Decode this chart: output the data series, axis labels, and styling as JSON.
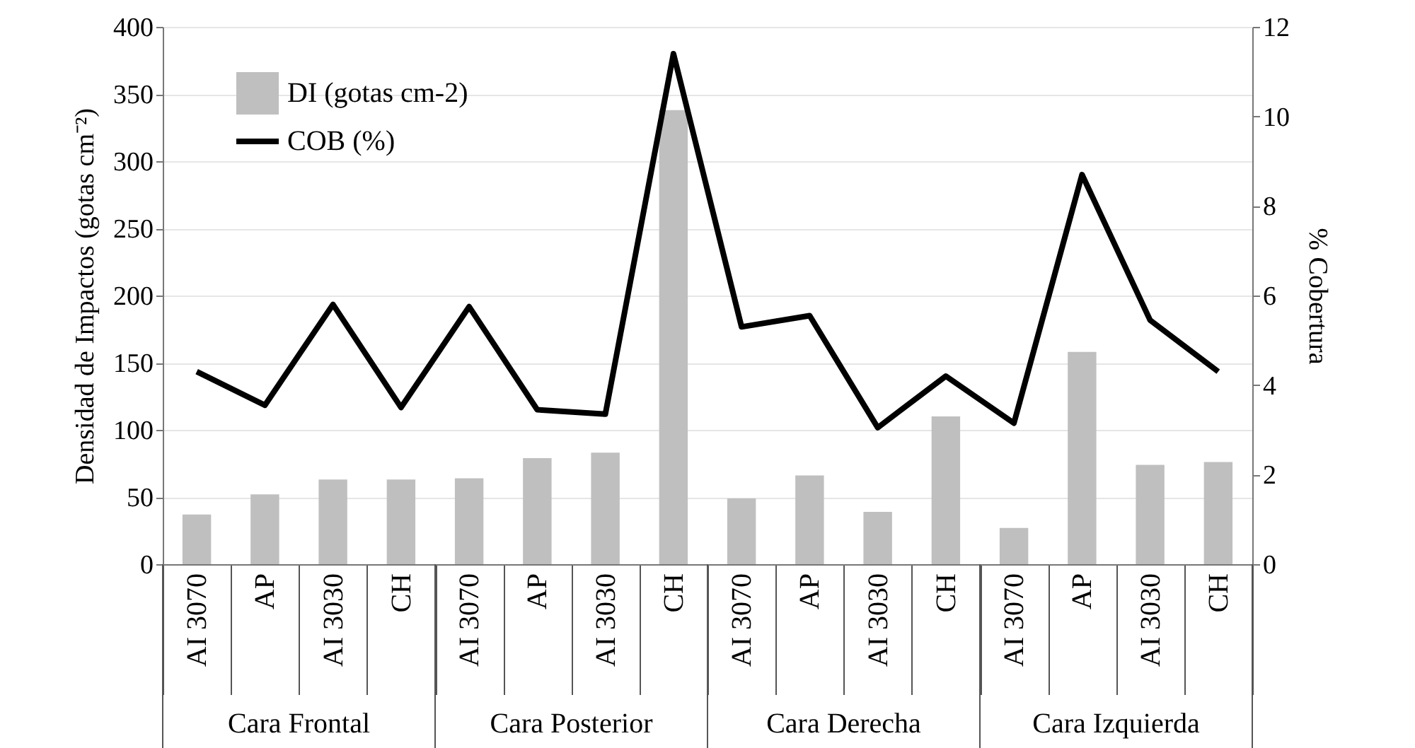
{
  "chart_data": {
    "type": "bar",
    "categories": [
      "AI 3070",
      "AP",
      "AI 3030",
      "CH",
      "AI 3070",
      "AP",
      "AI 3030",
      "CH",
      "AI 3070",
      "AP",
      "AI 3030",
      "CH",
      "AI 3070",
      "AP",
      "AI 3030",
      "CH"
    ],
    "series": [
      {
        "name": "DI (gotas cm-2)",
        "color": "#bfbfbf",
        "values": [
          37,
          52,
          63,
          63,
          64,
          79,
          83,
          338,
          49,
          66,
          39,
          110,
          27,
          158,
          74,
          76
        ]
      },
      {
        "name": "COB (%)",
        "type": "line",
        "axis": "y2",
        "color": "#000000",
        "values": [
          4.3,
          3.55,
          5.8,
          3.5,
          5.75,
          3.45,
          3.35,
          11.4,
          5.3,
          5.55,
          3.05,
          4.2,
          3.15,
          8.7,
          5.45,
          4.3
        ]
      }
    ],
    "ylabel": "Densidad de Impactos (gotas cm⁻²)",
    "y2label": "% Cobertura",
    "ylim": [
      0,
      400
    ],
    "yticks": [
      0,
      50,
      100,
      150,
      200,
      250,
      300,
      350,
      400
    ],
    "y2lim": [
      0,
      12
    ],
    "y2ticks": [
      0,
      2,
      4,
      6,
      8,
      10,
      12
    ],
    "annotations": [
      "Cara Frontal",
      "Cara Posterior",
      "Cara Derecha",
      "Cara Izquierda"
    ],
    "grid": "y",
    "legend": "top left",
    "marker": "none",
    "line_style": "solid"
  }
}
